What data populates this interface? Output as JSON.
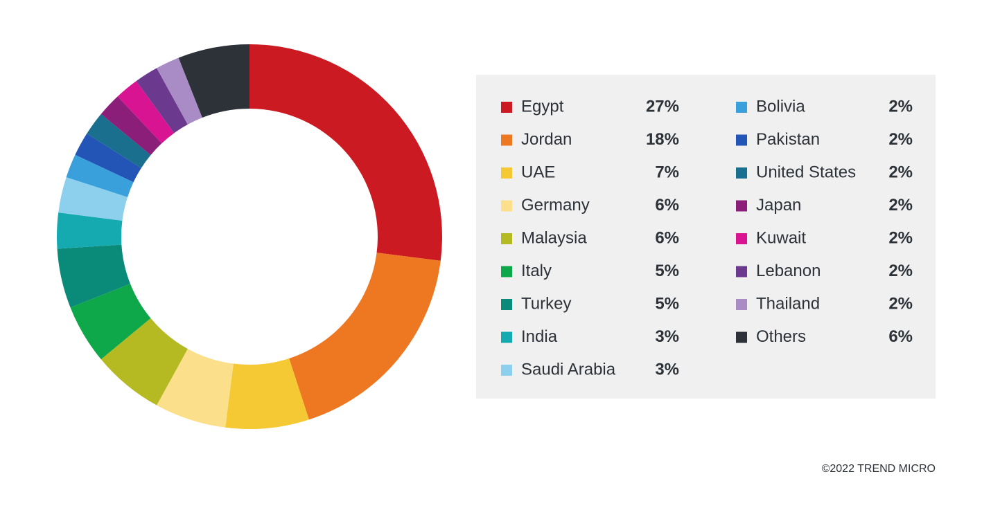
{
  "chart_data": {
    "type": "donut",
    "categories": [
      "Egypt",
      "Jordan",
      "UAE",
      "Germany",
      "Malaysia",
      "Italy",
      "Turkey",
      "India",
      "Saudi Arabia",
      "Bolivia",
      "Pakistan",
      "United States",
      "Japan",
      "Kuwait",
      "Lebanon",
      "Thailand",
      "Others"
    ],
    "values": [
      27,
      18,
      7,
      6,
      6,
      5,
      5,
      3,
      3,
      2,
      2,
      2,
      2,
      2,
      2,
      2,
      6
    ],
    "value_labels": [
      "27%",
      "18%",
      "7%",
      "6%",
      "6%",
      "5%",
      "5%",
      "3%",
      "3%",
      "2%",
      "2%",
      "2%",
      "2%",
      "2%",
      "2%",
      "2%",
      "6%"
    ],
    "colors": [
      "#cc1a22",
      "#ee7722",
      "#f5c933",
      "#fbdf8a",
      "#b5ba22",
      "#0ea84a",
      "#0a8a78",
      "#14aab0",
      "#8dd0ee",
      "#3aa0dc",
      "#2255b5",
      "#1a6f8f",
      "#8a1e78",
      "#d91493",
      "#6b3a8e",
      "#a98cc6",
      "#2d3238"
    ],
    "source": "©2022 TREND MICRO"
  }
}
